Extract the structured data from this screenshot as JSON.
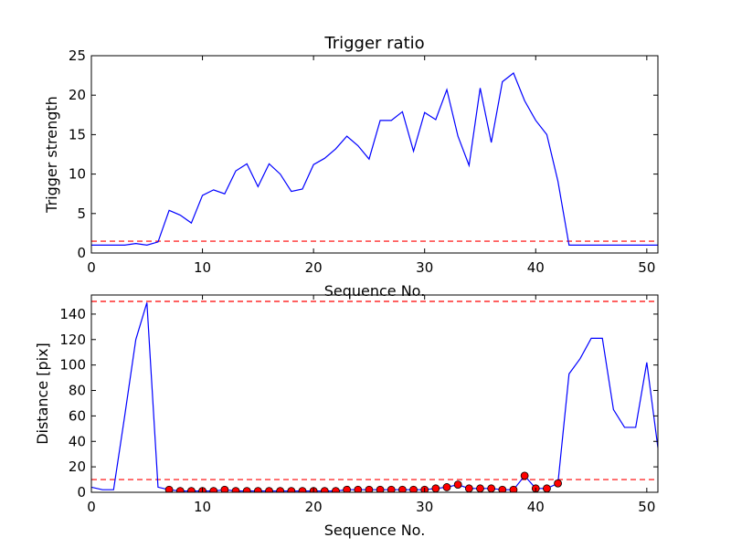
{
  "chart_data": [
    {
      "type": "line",
      "title": "Trigger ratio",
      "xlabel": "Sequence No.",
      "ylabel": "Trigger strength",
      "xlim": [
        0,
        51
      ],
      "ylim": [
        0,
        25
      ],
      "xticks": [
        0,
        10,
        20,
        30,
        40,
        50
      ],
      "yticks": [
        0,
        5,
        10,
        15,
        20,
        25
      ],
      "grid": false,
      "threshold_lines": [
        1.5
      ],
      "colors": {
        "line": "#0000ff",
        "threshold": "#ff0000"
      },
      "series": [
        {
          "x": [
            0,
            1,
            2,
            3,
            4,
            5,
            6,
            7,
            8,
            9,
            10,
            11,
            12,
            13,
            14,
            15,
            16,
            17,
            18,
            19,
            20,
            21,
            22,
            23,
            24,
            25,
            26,
            27,
            28,
            29,
            30,
            31,
            32,
            33,
            34,
            35,
            36,
            37,
            38,
            39,
            40,
            41,
            42,
            43,
            44,
            45,
            46,
            47,
            48,
            49,
            50,
            51
          ],
          "values": [
            1.0,
            1.0,
            1.0,
            1.0,
            1.2,
            1.0,
            1.4,
            5.4,
            4.8,
            3.8,
            7.3,
            8.0,
            7.5,
            10.4,
            11.3,
            8.4,
            11.3,
            10.0,
            7.8,
            8.1,
            11.2,
            12.0,
            13.2,
            14.8,
            13.6,
            11.9,
            16.8,
            16.8,
            17.9,
            12.9,
            17.8,
            16.9,
            20.7,
            14.8,
            11.1,
            20.9,
            14.0,
            21.7,
            22.8,
            19.3,
            16.8,
            15.0,
            9.1,
            1.0,
            1.0,
            1.0,
            1.0,
            1.0,
            1.0,
            1.0,
            1.0,
            1.0
          ]
        }
      ]
    },
    {
      "type": "line",
      "title": "",
      "xlabel": "Sequence No.",
      "ylabel": "Distance [pix]",
      "xlim": [
        0,
        51
      ],
      "ylim": [
        0,
        155
      ],
      "xticks": [
        0,
        10,
        20,
        30,
        40,
        50
      ],
      "yticks": [
        0,
        20,
        40,
        60,
        80,
        100,
        120,
        140
      ],
      "grid": false,
      "threshold_lines": [
        10,
        150
      ],
      "colors": {
        "line": "#0000ff",
        "threshold": "#ff0000",
        "marker_fill": "#ff0000",
        "marker_edge": "#000000"
      },
      "series": [
        {
          "style": "line",
          "x": [
            0,
            1,
            2,
            3,
            4,
            5,
            6,
            7,
            8,
            9,
            10,
            11,
            12,
            13,
            14,
            15,
            16,
            17,
            18,
            19,
            20,
            21,
            22,
            23,
            24,
            25,
            26,
            27,
            28,
            29,
            30,
            31,
            32,
            33,
            34,
            35,
            36,
            37,
            38,
            39,
            40,
            41,
            42,
            43,
            44,
            45,
            46,
            47,
            48,
            49,
            50,
            51
          ],
          "values": [
            4,
            2,
            2,
            60,
            120,
            149,
            4,
            2,
            1,
            1,
            1,
            1,
            2,
            1,
            1,
            1,
            1,
            1,
            1,
            1,
            1,
            1,
            1,
            2,
            2,
            2,
            2,
            2,
            2,
            2,
            2,
            3,
            4,
            6,
            3,
            3,
            3,
            2,
            2,
            13,
            3,
            3,
            7,
            93,
            105,
            121,
            121,
            65,
            51,
            51,
            102,
            35
          ]
        },
        {
          "style": "markers",
          "x": [
            7,
            8,
            9,
            10,
            11,
            12,
            13,
            14,
            15,
            16,
            17,
            18,
            19,
            20,
            21,
            22,
            23,
            24,
            25,
            26,
            27,
            28,
            29,
            30,
            31,
            32,
            33,
            34,
            35,
            36,
            37,
            38,
            39,
            40,
            41,
            42
          ],
          "values": [
            2,
            1,
            1,
            1,
            1,
            2,
            1,
            1,
            1,
            1,
            1,
            1,
            1,
            1,
            1,
            1,
            2,
            2,
            2,
            2,
            2,
            2,
            2,
            2,
            3,
            4,
            6,
            3,
            3,
            3,
            2,
            2,
            13,
            3,
            3,
            7
          ]
        }
      ]
    }
  ]
}
